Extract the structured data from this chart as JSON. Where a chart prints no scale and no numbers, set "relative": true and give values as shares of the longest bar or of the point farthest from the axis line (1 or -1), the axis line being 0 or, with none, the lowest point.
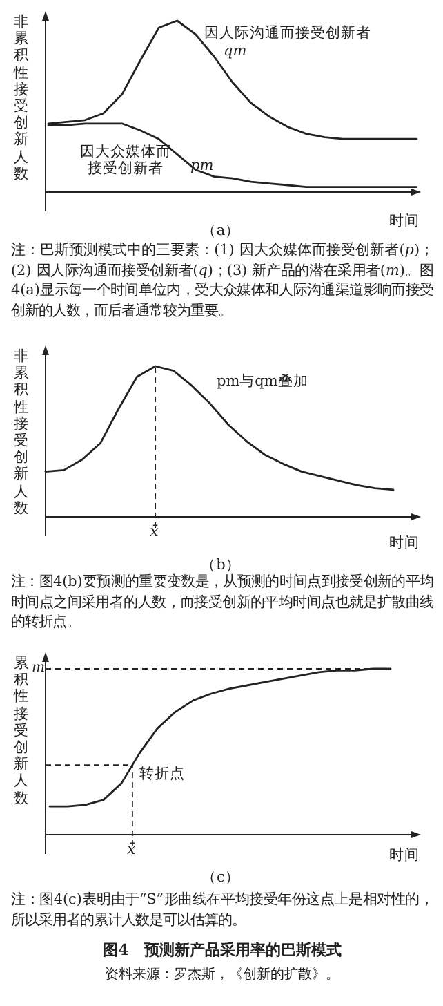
{
  "chart_data": [
    {
      "type": "line",
      "relative": true,
      "title": "（a）",
      "ylabel": "非累积性接受创新人数",
      "xlabel": "时间",
      "categories": [
        null,
        null,
        null,
        null,
        null,
        null,
        null,
        null,
        null,
        null,
        null,
        null,
        null,
        null,
        null,
        null,
        null,
        null,
        null,
        null,
        null
      ],
      "series": [
        {
          "name": "因人际沟通而接受创新者 *qm*",
          "color": "#222222",
          "values": [
            0.4,
            0.41,
            0.42,
            0.46,
            0.57,
            0.77,
            0.96,
            1.0,
            0.92,
            0.79,
            0.64,
            0.52,
            0.44,
            0.38,
            0.34,
            0.32,
            0.31,
            0.31,
            0.31,
            0.31,
            0.31
          ]
        },
        {
          "name": "因大众媒体而接受创新者 *pm*",
          "color": "#222222",
          "values": [
            0.39,
            0.39,
            0.4,
            0.4,
            0.4,
            0.36,
            0.31,
            0.22,
            0.13,
            0.09,
            0.08,
            0.06,
            0.05,
            0.04,
            0.03,
            0.03,
            0.03,
            0.03,
            0.03,
            0.03,
            0.03
          ]
        }
      ],
      "annotations": [
        "注：巴斯预测模式中的三要素：(1) 因大众媒体而接受创新者(*p*)；(2) 因人际沟通而接受创新者(*q*)；(3) 新产品的潜在采用者(*m*)。图4(a)显示每一个时间单位内，受大众媒体和人际沟通渠道影响而接受创新的人数，而后者通常较为重要。"
      ]
    },
    {
      "type": "line",
      "relative": true,
      "title": "（b）",
      "ylabel": "非累积性接受创新人数",
      "xlabel": "时间",
      "categories": [
        null,
        null,
        null,
        null,
        null,
        null,
        null,
        null,
        null,
        null,
        null,
        null,
        null,
        null,
        null,
        null,
        null,
        null,
        null,
        null
      ],
      "series": [
        {
          "name": "pm与qm叠加",
          "color": "#222222",
          "values": [
            0.3,
            0.31,
            0.38,
            0.49,
            0.72,
            0.93,
            1.0,
            0.97,
            0.87,
            0.75,
            0.61,
            0.5,
            0.41,
            0.35,
            0.3,
            0.27,
            0.24,
            0.21,
            0.19,
            0.18
          ]
        }
      ],
      "annotations": [
        "x̄",
        "注：图4(b)要预测的重要变数是，从预测的时间点到接受创新的平均时间点之间采用者的人数，而接受创新的平均时间点也就是扩散曲线的转折点。"
      ]
    },
    {
      "type": "line",
      "relative": true,
      "title": "（c）",
      "ylabel": "累积性接受创新人数",
      "xlabel": "时间",
      "categories": [
        null,
        null,
        null,
        null,
        null,
        null,
        null,
        null,
        null,
        null,
        null,
        null,
        null,
        null,
        null,
        null,
        null,
        null,
        null,
        null
      ],
      "series": [
        {
          "color": "#222222",
          "values": [
            0.17,
            0.17,
            0.18,
            0.21,
            0.31,
            0.49,
            0.64,
            0.74,
            0.81,
            0.85,
            0.88,
            0.9,
            0.92,
            0.94,
            0.96,
            0.98,
            0.99,
            0.99,
            1.0,
            1.0
          ]
        }
      ],
      "ref_lines": [
        {
          "axis": "y",
          "value": 1,
          "label": "m",
          "line_style": "dashed"
        },
        {
          "axis": "y",
          "value": 0.42,
          "line_style": "dashed"
        }
      ],
      "annotations": [
        "x̄",
        "转折点",
        "注：图4(c)表明由于“S”形曲线在平均接受年份这点上是相对性的，所以采用者的累计人数是可以估算的。",
        "图4　预测新产品采用率的巴斯模式",
        "资料来源：罗杰斯，《创新的扩散》。"
      ]
    }
  ]
}
